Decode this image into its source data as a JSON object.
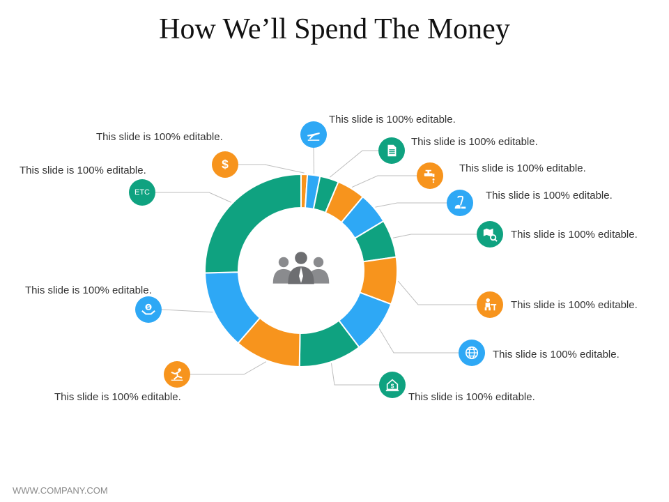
{
  "title": "How We’ll Spend The Money",
  "footer": "WWW.COMPANY.COM",
  "colors": {
    "green": "#0fa280",
    "orange": "#f7941d",
    "blue": "#2ea8f5",
    "ink": "#333333",
    "center_icon": "#6d6e71"
  },
  "chart_data": {
    "type": "donut",
    "center_icon": "team-icon",
    "segments": [
      {
        "value": 1,
        "color": "#f7941d",
        "label": "This slide is 100% editable.",
        "icon": "dollar-icon"
      },
      {
        "value": 2,
        "color": "#2ea8f5",
        "label": "This slide is 100% editable.",
        "icon": "plane-icon"
      },
      {
        "value": 3,
        "color": "#0fa280",
        "label": "This slide is 100% editable.",
        "icon": "document-icon"
      },
      {
        "value": 4.5,
        "color": "#f7941d",
        "label": "This slide is 100% editable.",
        "icon": "water-tap-icon"
      },
      {
        "value": 5,
        "color": "#2ea8f5",
        "label": "This slide is 100% editable.",
        "icon": "vacuum-icon"
      },
      {
        "value": 6,
        "color": "#0fa280",
        "label": "This slide is 100% editable.",
        "icon": "map-search-icon"
      },
      {
        "value": 7.5,
        "color": "#f7941d",
        "label": "This slide is 100% editable.",
        "icon": "desk-worker-icon"
      },
      {
        "value": 8.5,
        "color": "#2ea8f5",
        "label": "This slide is 100% editable.",
        "icon": "globe-icon"
      },
      {
        "value": 10,
        "color": "#0fa280",
        "label": "This slide is 100% editable.",
        "icon": "house-money-icon"
      },
      {
        "value": 10.5,
        "color": "#f7941d",
        "label": "This slide is 100% editable.",
        "icon": "slip-hazard-icon"
      },
      {
        "value": 12.5,
        "color": "#2ea8f5",
        "label": "This slide is 100% editable.",
        "icon": "money-hand-icon"
      },
      {
        "value": 24,
        "color": "#0fa280",
        "label": "This slide is 100% editable.",
        "icon": "etc-icon",
        "icon_text": "ETC"
      }
    ]
  }
}
